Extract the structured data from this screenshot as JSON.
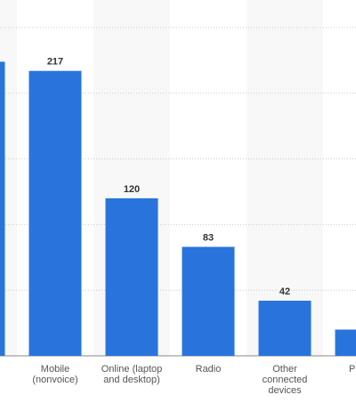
{
  "chart_data": {
    "type": "bar",
    "categories": [
      null,
      "Mobile (nonvoice)",
      "Online (laptop and desktop)",
      "Radio",
      "Other connected devices",
      "Pr"
    ],
    "values": [
      224,
      217,
      120,
      83,
      42,
      20
    ],
    "color": "#2874dc",
    "ylim": [
      0,
      250
    ],
    "yticks": [
      0,
      50,
      100,
      150,
      200,
      250
    ],
    "grid": true
  }
}
